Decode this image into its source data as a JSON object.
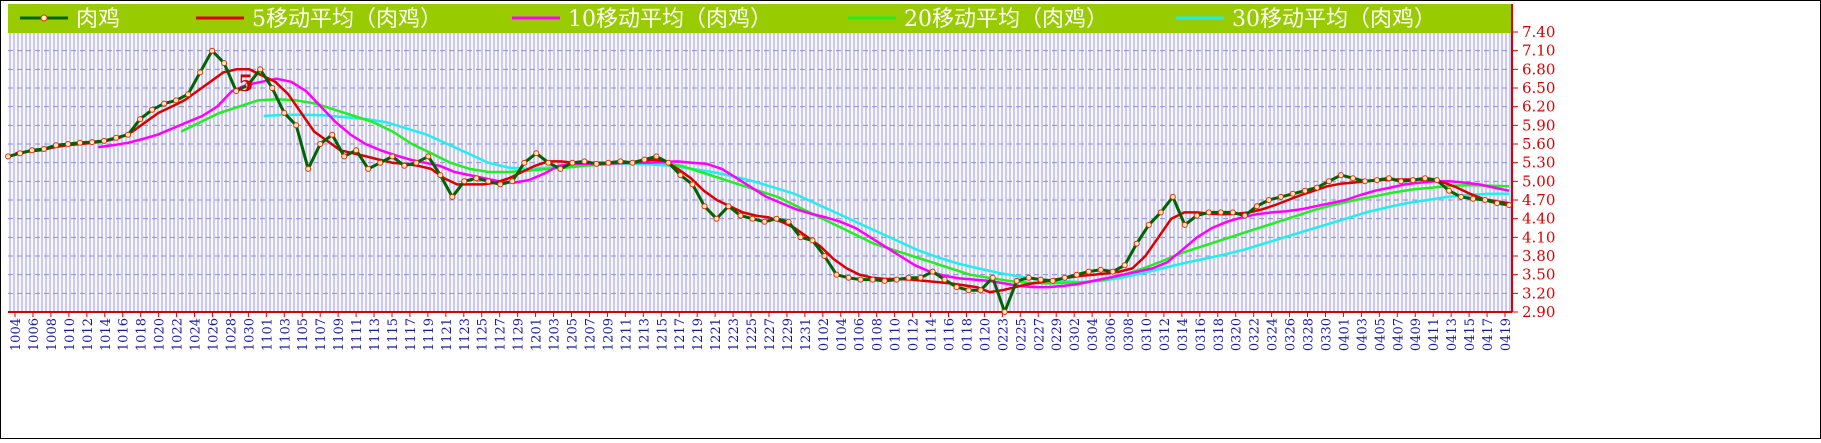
{
  "chart_data": {
    "type": "line",
    "x_ticks": [
      "1004",
      "1006",
      "1008",
      "1010",
      "1012",
      "1014",
      "1016",
      "1018",
      "1020",
      "1022",
      "1024",
      "1026",
      "1028",
      "1030",
      "1101",
      "1103",
      "1105",
      "1107",
      "1109",
      "1111",
      "1113",
      "1115",
      "1117",
      "1119",
      "1121",
      "1123",
      "1125",
      "1127",
      "1129",
      "1201",
      "1203",
      "1205",
      "1207",
      "1209",
      "1211",
      "1213",
      "1215",
      "1217",
      "1219",
      "1221",
      "1223",
      "1225",
      "1227",
      "1229",
      "1231",
      "0102",
      "0104",
      "0106",
      "0108",
      "0110",
      "0112",
      "0114",
      "0116",
      "0118",
      "0120",
      "0223",
      "0225",
      "0227",
      "0229",
      "0302",
      "0304",
      "0306",
      "0308",
      "0310",
      "0312",
      "0314",
      "0316",
      "0318",
      "0320",
      "0322",
      "0324",
      "0326",
      "0328",
      "0330",
      "0401",
      "0403",
      "0405",
      "0407",
      "0409",
      "0411",
      "0413",
      "0415",
      "0417",
      "0419"
    ],
    "y_ticks": [
      "7.40",
      "7.10",
      "6.80",
      "6.50",
      "6.20",
      "5.90",
      "5.60",
      "5.30",
      "5.00",
      "4.70",
      "4.40",
      "4.10",
      "3.80",
      "3.50",
      "3.20",
      "2.90"
    ],
    "ylim": [
      2.9,
      7.4
    ],
    "legend": [
      "肉鸡",
      "5移动平均（肉鸡）",
      "10移动平均（肉鸡）",
      "20移动平均（肉鸡）",
      "30移动平均（肉鸡）"
    ],
    "series_colors": [
      "#006400",
      "#dd0000",
      "#ff00ff",
      "#22ee22",
      "#22eeee"
    ],
    "annotation": "5",
    "series": [
      {
        "name": "肉鸡",
        "values": [
          5.4,
          5.45,
          5.5,
          5.52,
          5.58,
          5.6,
          5.62,
          5.63,
          5.65,
          5.7,
          5.75,
          6.0,
          6.15,
          6.25,
          6.3,
          6.4,
          6.75,
          7.1,
          6.9,
          6.45,
          6.55,
          6.8,
          6.5,
          6.1,
          5.9,
          5.2,
          5.6,
          5.75,
          5.4,
          5.5,
          5.2,
          5.3,
          5.4,
          5.25,
          5.3,
          5.4,
          5.1,
          4.75,
          5.0,
          5.05,
          5.0,
          4.95,
          5.0,
          5.3,
          5.45,
          5.3,
          5.2,
          5.3,
          5.32,
          5.28,
          5.3,
          5.32,
          5.3,
          5.35,
          5.4,
          5.3,
          5.1,
          4.95,
          4.6,
          4.4,
          4.6,
          4.45,
          4.4,
          4.35,
          4.4,
          4.35,
          4.1,
          4.05,
          3.8,
          3.5,
          3.45,
          3.42,
          3.42,
          3.4,
          3.42,
          3.45,
          3.45,
          3.55,
          3.42,
          3.3,
          3.25,
          3.25,
          3.45,
          2.9,
          3.4,
          3.45,
          3.42,
          3.4,
          3.45,
          3.5,
          3.55,
          3.58,
          3.55,
          3.65,
          4.0,
          4.3,
          4.5,
          4.75,
          4.3,
          4.45,
          4.5,
          4.5,
          4.5,
          4.45,
          4.6,
          4.7,
          4.75,
          4.8,
          4.85,
          4.9,
          5.0,
          5.1,
          5.05,
          5.0,
          5.02,
          5.05,
          5.0,
          5.02,
          5.05,
          5.02,
          4.85,
          4.75,
          4.72,
          4.7,
          4.65,
          4.62
        ]
      },
      {
        "name": "5移动平均（肉鸡）",
        "values": [
          5.45,
          5.48,
          5.5,
          5.55,
          5.58,
          5.6,
          5.62,
          5.65,
          5.7,
          5.8,
          5.95,
          6.1,
          6.2,
          6.3,
          6.45,
          6.6,
          6.75,
          6.8,
          6.8,
          6.7,
          6.6,
          6.4,
          6.1,
          5.8,
          5.65,
          5.5,
          5.45,
          5.4,
          5.35,
          5.3,
          5.28,
          5.25,
          5.2,
          5.05,
          4.95,
          4.95,
          4.95,
          4.98,
          5.05,
          5.15,
          5.25,
          5.32,
          5.32,
          5.3,
          5.3,
          5.3,
          5.3,
          5.3,
          5.32,
          5.35,
          5.33,
          5.2,
          5.05,
          4.85,
          4.7,
          4.6,
          4.5,
          4.45,
          4.42,
          4.35,
          4.25,
          4.1,
          3.95,
          3.75,
          3.6,
          3.5,
          3.45,
          3.43,
          3.43,
          3.42,
          3.4,
          3.38,
          3.36,
          3.33,
          3.3,
          3.22,
          3.25,
          3.3,
          3.35,
          3.38,
          3.42,
          3.45,
          3.48,
          3.5,
          3.52,
          3.55,
          3.6,
          3.8,
          4.1,
          4.4,
          4.5,
          4.5,
          4.48,
          4.47,
          4.48,
          4.5,
          4.55,
          4.62,
          4.7,
          4.78,
          4.85,
          4.92,
          4.96,
          4.98,
          5.0,
          5.02,
          5.03,
          5.03,
          5.03,
          5.02,
          4.98,
          4.9,
          4.8,
          4.72,
          4.68,
          4.65
        ]
      },
      {
        "name": "10移动平均（肉鸡）",
        "values": [
          5.55,
          5.58,
          5.62,
          5.68,
          5.75,
          5.85,
          5.95,
          6.05,
          6.2,
          6.45,
          6.55,
          6.6,
          6.65,
          6.6,
          6.45,
          6.2,
          5.95,
          5.75,
          5.6,
          5.5,
          5.42,
          5.35,
          5.3,
          5.25,
          5.15,
          5.1,
          5.05,
          5.0,
          4.98,
          5.02,
          5.12,
          5.25,
          5.28,
          5.28,
          5.28,
          5.29,
          5.3,
          5.3,
          5.31,
          5.32,
          5.3,
          5.28,
          5.2,
          5.05,
          4.9,
          4.75,
          4.65,
          4.55,
          4.48,
          4.42,
          4.35,
          4.25,
          4.1,
          3.95,
          3.8,
          3.65,
          3.55,
          3.48,
          3.44,
          3.42,
          3.4,
          3.36,
          3.32,
          3.3,
          3.3,
          3.32,
          3.35,
          3.4,
          3.45,
          3.5,
          3.55,
          3.6,
          3.7,
          3.9,
          4.1,
          4.25,
          4.35,
          4.42,
          4.47,
          4.5,
          4.52,
          4.55,
          4.6,
          4.65,
          4.7,
          4.78,
          4.85,
          4.9,
          4.95,
          4.98,
          5.0,
          5.0,
          4.98,
          4.95,
          4.9,
          4.85
        ]
      },
      {
        "name": "20移动平均（肉鸡）",
        "values": [
          5.8,
          5.95,
          6.1,
          6.2,
          6.3,
          6.32,
          6.3,
          6.25,
          6.15,
          6.05,
          5.95,
          5.8,
          5.6,
          5.45,
          5.3,
          5.2,
          5.15,
          5.15,
          5.17,
          5.2,
          5.22,
          5.25,
          5.27,
          5.3,
          5.32,
          5.3,
          5.25,
          5.15,
          5.05,
          4.95,
          4.85,
          4.75,
          4.6,
          4.45,
          4.3,
          4.15,
          4.0,
          3.9,
          3.8,
          3.7,
          3.6,
          3.5,
          3.45,
          3.4,
          3.37,
          3.36,
          3.37,
          3.38,
          3.42,
          3.5,
          3.6,
          3.72,
          3.85,
          3.95,
          4.05,
          4.15,
          4.25,
          4.35,
          4.45,
          4.55,
          4.63,
          4.7,
          4.76,
          4.82,
          4.87,
          4.9,
          4.93,
          4.94,
          4.93,
          4.92
        ]
      },
      {
        "name": "30移动平均（肉鸡）",
        "values": [
          6.05,
          6.07,
          6.07,
          6.06,
          6.03,
          6.0,
          5.95,
          5.85,
          5.75,
          5.6,
          5.45,
          5.3,
          5.22,
          5.2,
          5.22,
          5.25,
          5.27,
          5.28,
          5.28,
          5.27,
          5.25,
          5.2,
          5.15,
          5.08,
          5.0,
          4.9,
          4.8,
          4.65,
          4.5,
          4.35,
          4.2,
          4.05,
          3.9,
          3.78,
          3.68,
          3.6,
          3.53,
          3.47,
          3.42,
          3.4,
          3.38,
          3.4,
          3.45,
          3.52,
          3.6,
          3.68,
          3.75,
          3.82,
          3.9,
          4.0,
          4.1,
          4.2,
          4.3,
          4.4,
          4.5,
          4.58,
          4.65,
          4.7,
          4.75,
          4.78,
          4.8,
          4.8
        ]
      }
    ]
  }
}
